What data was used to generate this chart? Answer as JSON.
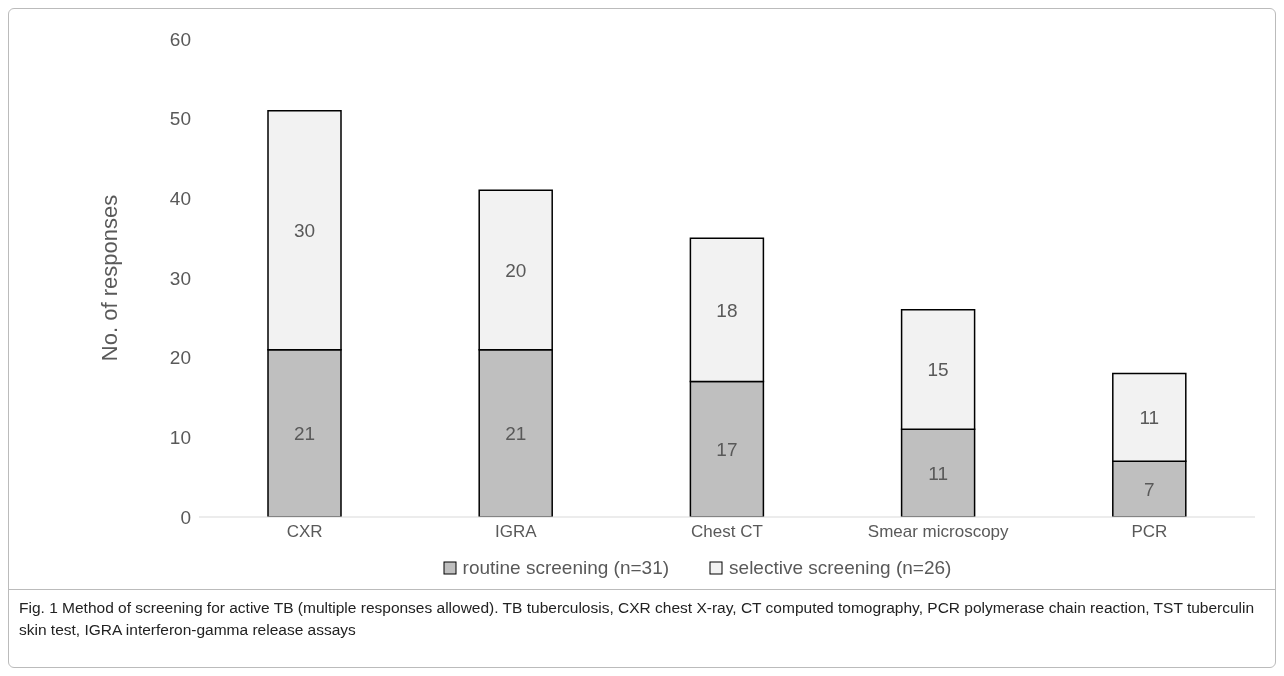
{
  "chart_data": {
    "type": "bar",
    "stacked": true,
    "ylabel": "No. of responses",
    "categories": [
      "CXR",
      "IGRA",
      "Chest CT",
      "Smear microscopy",
      "PCR"
    ],
    "series": [
      {
        "name": "routine screening (n=31)",
        "color": "#bfbfbf",
        "values": [
          21,
          21,
          17,
          11,
          7
        ]
      },
      {
        "name": "selective screening (n=26)",
        "color": "#f2f2f2",
        "values": [
          30,
          20,
          18,
          15,
          11
        ]
      }
    ],
    "ylim": [
      0,
      60
    ],
    "yticks": [
      0,
      10,
      20,
      30,
      40,
      50,
      60
    ],
    "grid": false,
    "legend": "bottom",
    "data_labels": true,
    "annotations": [
      "Fig. 1  Method of screening for active TB (multiple responses allowed). TB tuberculosis, CXR chest X-ray, CT computed tomography, PCR polymerase chain reaction, TST tuberculin skin test, IGRA interferon-gamma release assays"
    ]
  }
}
